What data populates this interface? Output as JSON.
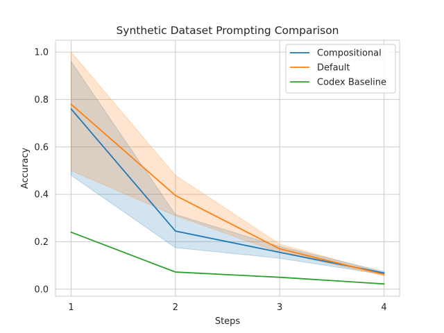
{
  "chart_data": {
    "type": "line",
    "title": "Synthetic Dataset Prompting Comparison",
    "xlabel": "Steps",
    "ylabel": "Accuracy",
    "x": [
      1,
      2,
      3,
      4
    ],
    "xlim": [
      0.85,
      4.15
    ],
    "ylim": [
      -0.03,
      1.05
    ],
    "xticks": [
      "1",
      "2",
      "3",
      "4"
    ],
    "yticks": [
      "0.0",
      "0.2",
      "0.4",
      "0.6",
      "0.8",
      "1.0"
    ],
    "grid": true,
    "legend_position": "top-right",
    "series": [
      {
        "name": "Compositional",
        "color": "#1f77b4",
        "values": [
          0.76,
          0.245,
          0.155,
          0.068
        ],
        "lower": [
          0.48,
          0.175,
          0.13,
          0.062
        ],
        "upper": [
          0.96,
          0.315,
          0.18,
          0.074
        ]
      },
      {
        "name": "Default",
        "color": "#ff7f0e",
        "values": [
          0.78,
          0.395,
          0.17,
          0.062
        ],
        "lower": [
          0.5,
          0.31,
          0.155,
          0.056
        ],
        "upper": [
          1.0,
          0.48,
          0.19,
          0.068
        ]
      },
      {
        "name": "Codex Baseline",
        "color": "#2ca02c",
        "values": [
          0.24,
          0.072,
          0.05,
          0.022
        ]
      }
    ]
  }
}
